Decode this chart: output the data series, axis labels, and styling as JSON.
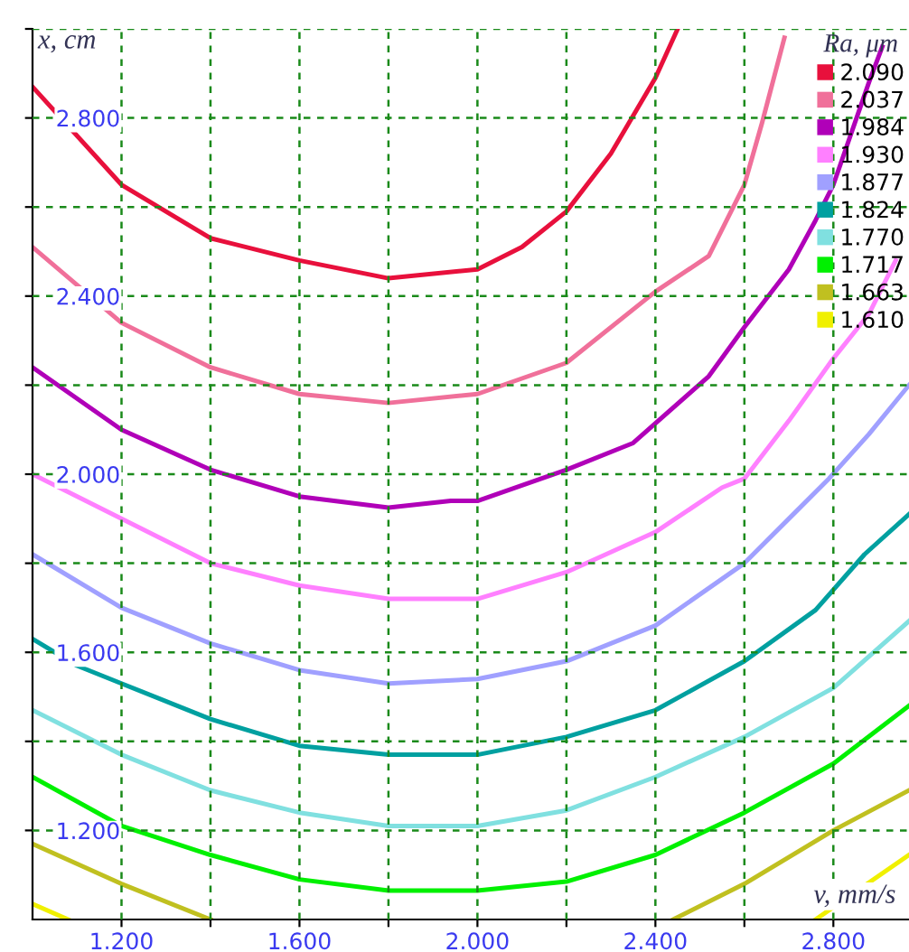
{
  "chart_data": {
    "type": "line",
    "xlabel": "v, mm/s",
    "ylabel": "x, cm",
    "legend_title": "Ra, μm",
    "xlim": [
      1.0,
      2.97
    ],
    "ylim": [
      1.0,
      3.0
    ],
    "xticks": [
      {
        "value": 1.2,
        "label": "1.200"
      },
      {
        "value": 1.4,
        "label": null
      },
      {
        "value": 1.6,
        "label": "1.600"
      },
      {
        "value": 1.8,
        "label": null
      },
      {
        "value": 2.0,
        "label": "2.000"
      },
      {
        "value": 2.2,
        "label": null
      },
      {
        "value": 2.4,
        "label": "2.400"
      },
      {
        "value": 2.6,
        "label": null
      },
      {
        "value": 2.8,
        "label": "2.800"
      }
    ],
    "yticks": [
      {
        "value": 1.2,
        "label": "1.200"
      },
      {
        "value": 1.4,
        "label": null
      },
      {
        "value": 1.6,
        "label": "1.600"
      },
      {
        "value": 1.8,
        "label": null
      },
      {
        "value": 2.0,
        "label": "2.000"
      },
      {
        "value": 2.2,
        "label": null
      },
      {
        "value": 2.4,
        "label": "2.400"
      },
      {
        "value": 2.6,
        "label": null
      },
      {
        "value": 2.8,
        "label": "2.800"
      },
      {
        "value": 3.0,
        "label": null
      }
    ],
    "grid": true,
    "legend": "top right",
    "marker": "none",
    "line_style": "solid",
    "series": [
      {
        "name": "2.090",
        "color": "#e8103c",
        "x": [
          1.0,
          1.2,
          1.4,
          1.6,
          1.8,
          2.0,
          2.1,
          2.2,
          2.3,
          2.4,
          2.45
        ],
        "values": [
          2.87,
          2.65,
          2.53,
          2.48,
          2.44,
          2.46,
          2.51,
          2.59,
          2.72,
          2.89,
          3.0
        ]
      },
      {
        "name": "2.037",
        "color": "#f0709a",
        "x": [
          1.0,
          1.2,
          1.4,
          1.6,
          1.8,
          2.0,
          2.2,
          2.4,
          2.52,
          2.6,
          2.64,
          2.69
        ],
        "values": [
          2.51,
          2.34,
          2.24,
          2.18,
          2.16,
          2.18,
          2.25,
          2.41,
          2.49,
          2.65,
          2.79,
          2.98
        ]
      },
      {
        "name": "1.984",
        "color": "#b000b8",
        "x": [
          1.0,
          1.2,
          1.4,
          1.6,
          1.8,
          1.94,
          2.0,
          2.2,
          2.35,
          2.52,
          2.6,
          2.7,
          2.76,
          2.8,
          2.88,
          2.91
        ],
        "values": [
          2.24,
          2.1,
          2.01,
          1.95,
          1.925,
          1.94,
          1.94,
          2.01,
          2.07,
          2.22,
          2.33,
          2.46,
          2.57,
          2.65,
          2.88,
          2.96
        ]
      },
      {
        "name": "1.930",
        "color": "#ff80ff",
        "x": [
          1.0,
          1.06,
          1.2,
          1.4,
          1.6,
          1.8,
          2.0,
          2.2,
          2.4,
          2.55,
          2.6,
          2.7,
          2.8,
          2.88,
          2.94
        ],
        "values": [
          2.0,
          1.97,
          1.9,
          1.8,
          1.75,
          1.72,
          1.72,
          1.78,
          1.87,
          1.97,
          1.99,
          2.12,
          2.26,
          2.36,
          2.48
        ]
      },
      {
        "name": "1.877",
        "color": "#a0a0ff",
        "x": [
          1.0,
          1.2,
          1.4,
          1.6,
          1.8,
          2.0,
          2.2,
          2.4,
          2.6,
          2.71,
          2.79,
          2.88,
          2.97
        ],
        "values": [
          1.82,
          1.7,
          1.62,
          1.56,
          1.53,
          1.54,
          1.58,
          1.66,
          1.8,
          1.91,
          1.99,
          2.09,
          2.2
        ]
      },
      {
        "name": "1.824",
        "color": "#00a0a0",
        "x": [
          1.0,
          1.1,
          1.2,
          1.4,
          1.6,
          1.8,
          2.0,
          2.2,
          2.4,
          2.6,
          2.76,
          2.87,
          2.97
        ],
        "values": [
          1.63,
          1.57,
          1.53,
          1.45,
          1.39,
          1.37,
          1.37,
          1.41,
          1.47,
          1.58,
          1.695,
          1.82,
          1.91
        ]
      },
      {
        "name": "1.770",
        "color": "#80e0e0",
        "x": [
          1.0,
          1.2,
          1.4,
          1.6,
          1.8,
          2.0,
          2.2,
          2.4,
          2.6,
          2.8,
          2.97
        ],
        "values": [
          1.47,
          1.37,
          1.29,
          1.24,
          1.21,
          1.21,
          1.245,
          1.32,
          1.41,
          1.52,
          1.67
        ]
      },
      {
        "name": "1.717",
        "color": "#00f000",
        "x": [
          1.0,
          1.2,
          1.4,
          1.6,
          1.8,
          2.0,
          2.2,
          2.4,
          2.6,
          2.8,
          2.97
        ],
        "values": [
          1.32,
          1.21,
          1.145,
          1.09,
          1.065,
          1.065,
          1.085,
          1.145,
          1.24,
          1.35,
          1.48
        ]
      },
      {
        "name": "1.663",
        "color": "#c0c020",
        "x": [
          1.0,
          1.2,
          1.4,
          1.9,
          2.44,
          2.6,
          2.8,
          2.97
        ],
        "values": [
          1.17,
          1.08,
          1.0,
          null,
          1.0,
          1.08,
          1.2,
          1.29
        ]
      },
      {
        "name": "1.610",
        "color": "#f0f000",
        "x": [
          1.0,
          1.08,
          1.9,
          2.76,
          2.97
        ],
        "values": [
          1.035,
          1.0,
          null,
          1.0,
          1.145
        ]
      }
    ]
  }
}
